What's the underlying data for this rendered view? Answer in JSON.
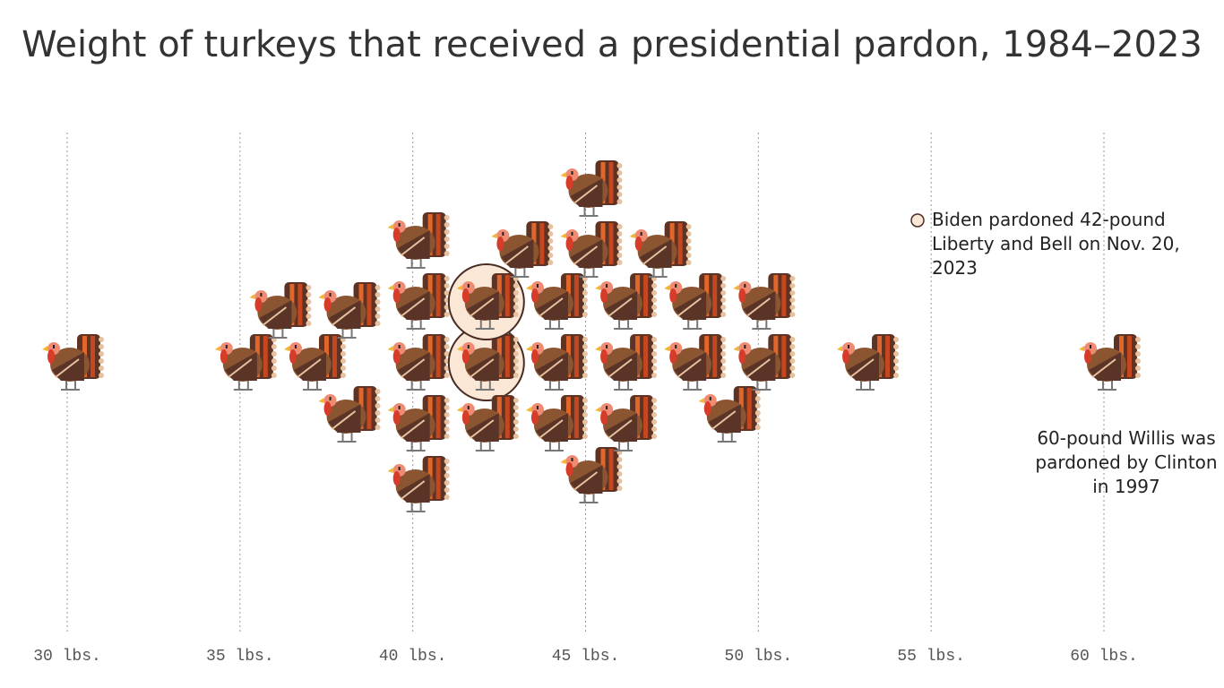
{
  "chart_data": {
    "type": "beeswarm",
    "title": "Weight of turkeys that received a presidential pardon, 1984–2023",
    "values": [
      30,
      35,
      36,
      37,
      38,
      38,
      40,
      40,
      40,
      40,
      40,
      42,
      42,
      42,
      43,
      44,
      44,
      44,
      45,
      45,
      45,
      46,
      46,
      46,
      47,
      48,
      48,
      49,
      50,
      50,
      53,
      60
    ],
    "highlight_indices": [
      11,
      12
    ],
    "xlim": [
      30,
      60
    ],
    "xticks": [
      {
        "value": 30,
        "label": "30 lbs."
      },
      {
        "value": 35,
        "label": "35 lbs."
      },
      {
        "value": 40,
        "label": "40 lbs."
      },
      {
        "value": 45,
        "label": "45 lbs."
      },
      {
        "value": 50,
        "label": "50 lbs."
      },
      {
        "value": 55,
        "label": "55 lbs."
      },
      {
        "value": 60,
        "label": "60 lbs."
      }
    ],
    "grid": true,
    "annotations": [
      "Biden pardoned 42-pound Liberty and Bell on Nov. 20, 2023",
      "60-pound Willis was pardoned by Clinton in 1997"
    ]
  }
}
